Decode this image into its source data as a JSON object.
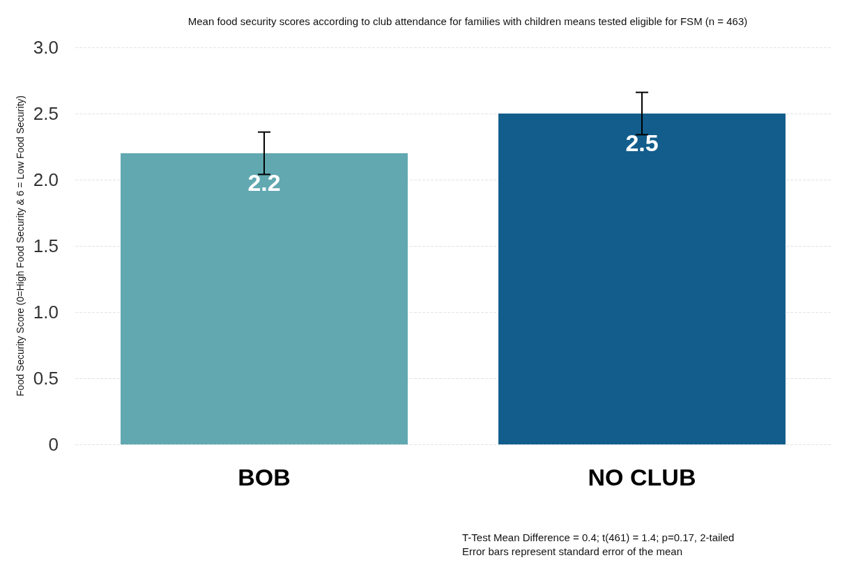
{
  "chart_data": {
    "type": "bar",
    "title": "Mean food security scores according to club attendance for families with children means tested eligible for FSM (n = 463)",
    "ylabel": "Food Security Score (0=High Food Security & 6 = Low Food Security)",
    "categories": [
      "BOB",
      "NO CLUB"
    ],
    "values": [
      2.2,
      2.5
    ],
    "colors": [
      "#61a8b1",
      "#125d8b"
    ],
    "errors": [
      0.16,
      0.16
    ],
    "data_labels": true,
    "ylim": [
      0,
      3
    ],
    "yticks": [
      0,
      0.5,
      {
        "value": 1,
        "label": "1.0"
      },
      1.5,
      {
        "value": 2,
        "label": "2.0"
      },
      2.5,
      {
        "value": 3,
        "label": "3.0"
      }
    ],
    "grid": "y",
    "annotations": [
      "T-Test Mean Difference = 0.4; t(461) = 1.4; p=0.17, 2-tailed",
      "Error bars represent standard error of the mean"
    ]
  }
}
